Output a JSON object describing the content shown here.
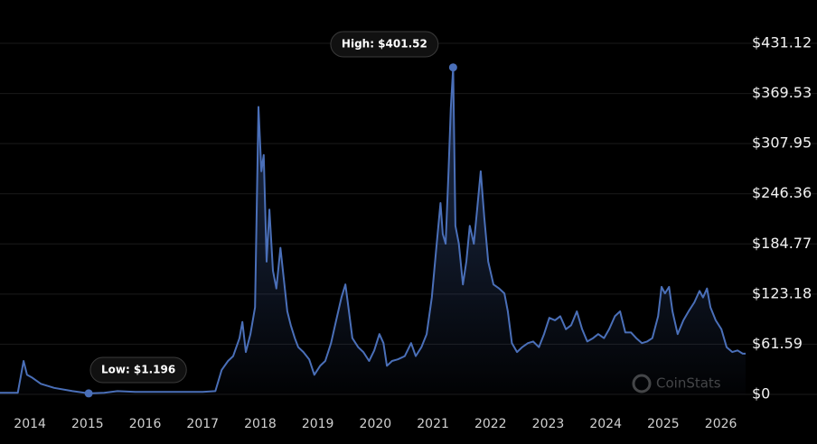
{
  "chart_data": {
    "type": "line",
    "x": [
      2013.48,
      2013.79,
      2013.89,
      2013.95,
      2014.03,
      2014.19,
      2014.42,
      2014.74,
      2015.02,
      2015.29,
      2015.52,
      2015.83,
      2016.31,
      2016.62,
      2017.0,
      2017.22,
      2017.33,
      2017.44,
      2017.53,
      2017.64,
      2017.69,
      2017.75,
      2017.83,
      2017.91,
      2017.97,
      2018.02,
      2018.06,
      2018.11,
      2018.16,
      2018.22,
      2018.28,
      2018.35,
      2018.41,
      2018.47,
      2018.53,
      2018.6,
      2018.66,
      2018.75,
      2018.85,
      2018.94,
      2019.04,
      2019.13,
      2019.23,
      2019.32,
      2019.41,
      2019.48,
      2019.54,
      2019.6,
      2019.7,
      2019.79,
      2019.89,
      2019.98,
      2020.07,
      2020.14,
      2020.2,
      2020.29,
      2020.39,
      2020.51,
      2020.62,
      2020.7,
      2020.8,
      2020.89,
      2020.98,
      2021.05,
      2021.13,
      2021.17,
      2021.22,
      2021.27,
      2021.31,
      2021.35,
      2021.39,
      2021.45,
      2021.52,
      2021.58,
      2021.64,
      2021.71,
      2021.77,
      2021.83,
      2021.89,
      2021.96,
      2022.05,
      2022.15,
      2022.24,
      2022.3,
      2022.37,
      2022.46,
      2022.55,
      2022.65,
      2022.74,
      2022.84,
      2022.93,
      2023.02,
      2023.12,
      2023.21,
      2023.31,
      2023.4,
      2023.5,
      2023.59,
      2023.68,
      2023.78,
      2023.87,
      2023.97,
      2024.06,
      2024.16,
      2024.25,
      2024.34,
      2024.44,
      2024.53,
      2024.63,
      2024.72,
      2024.81,
      2024.91,
      2024.97,
      2025.03,
      2025.1,
      2025.16,
      2025.25,
      2025.35,
      2025.44,
      2025.54,
      2025.63,
      2025.69,
      2025.76,
      2025.82,
      2025.91,
      2026.01,
      2026.1,
      2026.2,
      2026.29,
      2026.38,
      2026.43
    ],
    "values": [
      2,
      2,
      41,
      24,
      21,
      13,
      8,
      4,
      1.196,
      2,
      4,
      3,
      3,
      3,
      3,
      4,
      30,
      41,
      47,
      69,
      89,
      52,
      74,
      107,
      353,
      274,
      294,
      163,
      227,
      152,
      130,
      180,
      141,
      102,
      85,
      69,
      58,
      52,
      43,
      24,
      35,
      41,
      63,
      91,
      119,
      135,
      102,
      69,
      58,
      52,
      41,
      54,
      74,
      63,
      35,
      41,
      43,
      47,
      63,
      47,
      58,
      74,
      119,
      174,
      235,
      197,
      185,
      274,
      351,
      401.52,
      207,
      185,
      135,
      163,
      207,
      185,
      229,
      274,
      218,
      163,
      135,
      130,
      124,
      102,
      63,
      52,
      58,
      63,
      65,
      58,
      74,
      94,
      91,
      96,
      80,
      85,
      102,
      80,
      65,
      69,
      74,
      69,
      80,
      96,
      102,
      76,
      76,
      69,
      63,
      65,
      69,
      96,
      132,
      124,
      132,
      102,
      74,
      91,
      102,
      113,
      127,
      119,
      130,
      107,
      91,
      80,
      58,
      52,
      54,
      50,
      50
    ],
    "color": "#4a6fb8",
    "xlim": [
      2013.48,
      2026.43
    ],
    "xticks": [
      2014,
      2015,
      2016,
      2017,
      2018,
      2019,
      2020,
      2021,
      2022,
      2023,
      2024,
      2025,
      2026
    ],
    "ylim": [
      0,
      431.12
    ],
    "yticks": [
      {
        "value": 0,
        "label": "$0"
      },
      {
        "value": 61.59,
        "label": "$61.59"
      },
      {
        "value": 123.18,
        "label": "$123.18"
      },
      {
        "value": 184.77,
        "label": "$184.77"
      },
      {
        "value": 246.36,
        "label": "$246.36"
      },
      {
        "value": 307.95,
        "label": "$307.95"
      },
      {
        "value": 369.53,
        "label": "$369.53"
      },
      {
        "value": 431.12,
        "label": "$431.12"
      }
    ],
    "grid": true,
    "annotations": [
      {
        "label": "High: $401.52",
        "x": 2021.35,
        "value": 401.52
      },
      {
        "label": "Low: $1.196",
        "x": 2015.02,
        "value": 1.196
      }
    ],
    "watermark": "CoinStats"
  }
}
